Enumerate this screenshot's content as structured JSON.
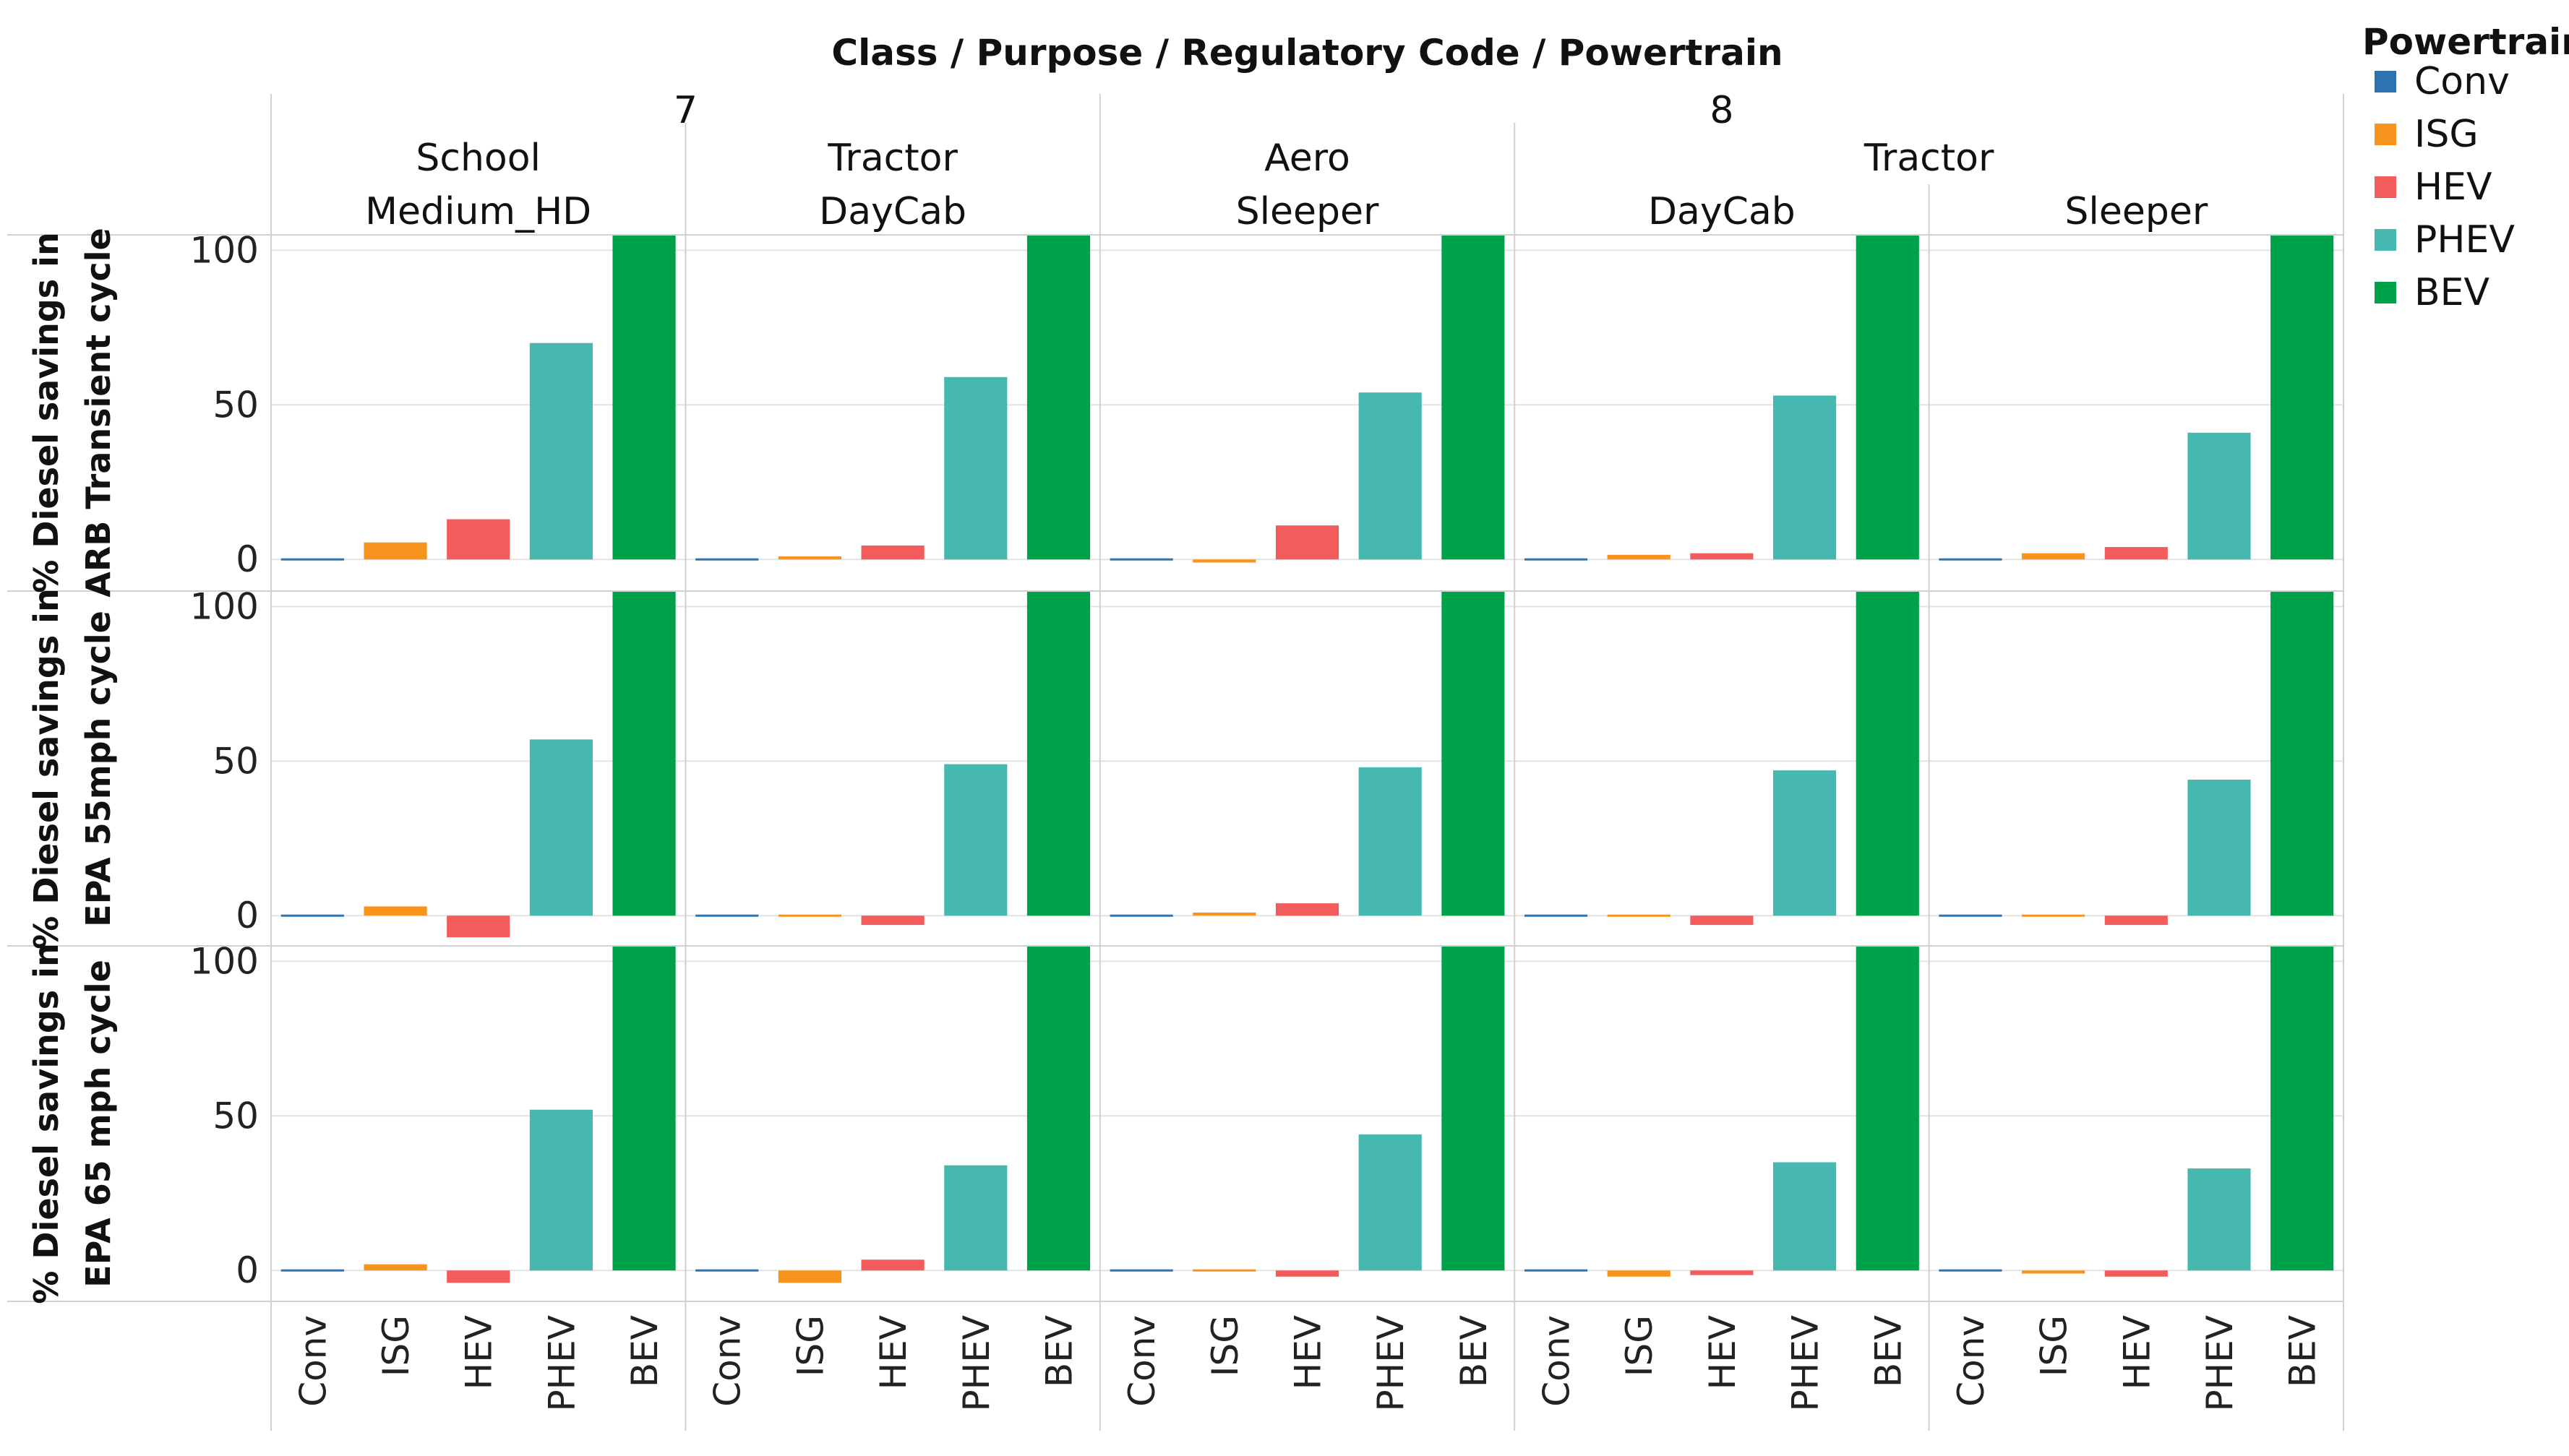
{
  "chart_data": {
    "type": "bar",
    "title": "Class / Purpose / Regulatory Code / Powertrain",
    "classes": [
      {
        "label": "7",
        "span": [
          0,
          1
        ]
      },
      {
        "label": "8",
        "span": [
          2,
          4
        ]
      }
    ],
    "purposes": [
      {
        "label": "School",
        "span": [
          0,
          0
        ]
      },
      {
        "label": "Tractor",
        "span": [
          1,
          1
        ]
      },
      {
        "label": "Aero",
        "span": [
          2,
          2
        ]
      },
      {
        "label": "Tractor",
        "span": [
          3,
          4
        ]
      }
    ],
    "regulatory_codes": [
      "Medium_HD",
      "DayCab",
      "Sleeper",
      "DayCab",
      "Sleeper"
    ],
    "categories": [
      "Conv",
      "ISG",
      "HEV",
      "PHEV",
      "BEV"
    ],
    "colors": {
      "Conv": "#2E73B0",
      "ISG": "#F7941D",
      "HEV": "#F25C5C",
      "PHEV": "#46B8B0",
      "BEV": "#00A14B"
    },
    "ylim": [
      -10,
      105
    ],
    "yticks": [
      0,
      50,
      100
    ],
    "rows": [
      {
        "ylabel_line1": "% Diesel savings in",
        "ylabel_line2": "ARB Transient cycle",
        "panels": [
          [
            0.3,
            5.5,
            13,
            70,
            105
          ],
          [
            0.3,
            1,
            4.5,
            59,
            105
          ],
          [
            0.3,
            -1,
            11,
            54,
            105
          ],
          [
            0.3,
            1.5,
            2,
            53,
            105
          ],
          [
            0.3,
            2,
            4,
            41,
            105
          ]
        ]
      },
      {
        "ylabel_line1": "% Diesel savings in",
        "ylabel_line2": "EPA 55mph cycle",
        "panels": [
          [
            0.3,
            3,
            -7,
            57,
            105
          ],
          [
            0.3,
            0.5,
            -3,
            49,
            105
          ],
          [
            0.3,
            1,
            4,
            48,
            105
          ],
          [
            0.3,
            0.5,
            -3,
            47,
            105
          ],
          [
            0.3,
            0.5,
            -3,
            44,
            105
          ]
        ]
      },
      {
        "ylabel_line1": "% Diesel savings in",
        "ylabel_line2": "EPA 65 mph cycle",
        "panels": [
          [
            0.3,
            2,
            -4,
            52,
            105
          ],
          [
            0.3,
            -4,
            3.5,
            34,
            105
          ],
          [
            0.3,
            0.5,
            -2,
            44,
            105
          ],
          [
            0.3,
            -2,
            -1.5,
            35,
            105
          ],
          [
            0.3,
            -1,
            -2,
            33,
            105
          ]
        ]
      }
    ],
    "legend": {
      "title": "Powertrain",
      "position": "top-right",
      "entries": [
        "Conv",
        "ISG",
        "HEV",
        "PHEV",
        "BEV"
      ]
    }
  }
}
